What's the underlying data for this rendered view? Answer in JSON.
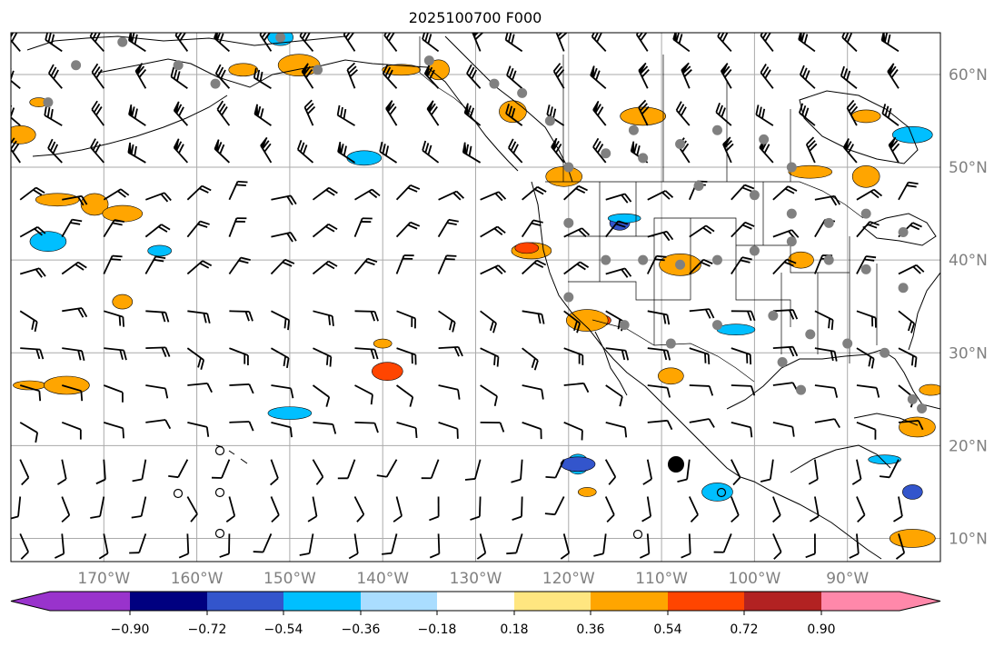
{
  "title": "2025100700 F000",
  "map": {
    "projection": "PlateCarree",
    "lon_range": [
      -180,
      -80
    ],
    "lat_range": [
      7.5,
      64.5
    ],
    "gridlines": true,
    "lon_ticks": [
      {
        "value": -170,
        "label": "170°W"
      },
      {
        "value": -160,
        "label": "160°W"
      },
      {
        "value": -150,
        "label": "150°W"
      },
      {
        "value": -140,
        "label": "140°W"
      },
      {
        "value": -130,
        "label": "130°W"
      },
      {
        "value": -120,
        "label": "120°W"
      },
      {
        "value": -110,
        "label": "110°W"
      },
      {
        "value": -100,
        "label": "100°W"
      },
      {
        "value": -90,
        "label": "90°W"
      }
    ],
    "lat_ticks": [
      {
        "value": 60,
        "label": "60°N"
      },
      {
        "value": 50,
        "label": "50°N"
      },
      {
        "value": 40,
        "label": "40°N"
      },
      {
        "value": 30,
        "label": "30°N"
      },
      {
        "value": 20,
        "label": "20°N"
      },
      {
        "value": 10,
        "label": "10°N"
      }
    ]
  },
  "colorbar": {
    "orientation": "horizontal",
    "extend": "both",
    "tick_labels": [
      "−0.90",
      "−0.72",
      "−0.54",
      "−0.36",
      "−0.18",
      "0.18",
      "0.36",
      "0.54",
      "0.72",
      "0.90"
    ],
    "colors": [
      "#9933cc",
      "#000080",
      "#3355cc",
      "#00bfff",
      "#aaddff",
      "#ffffff",
      "#ffe680",
      "#ffa500",
      "#ff4500",
      "#b22222",
      "#ff88aa"
    ]
  },
  "colors": {
    "land_outline": "#000000",
    "grid": "#aaaaaa",
    "barb": "#000000",
    "station_dot": "#808080"
  },
  "contour_patches": [
    {
      "lon": -177,
      "lat": 57,
      "color": "#ffa500"
    },
    {
      "lon": -179,
      "lat": 53.5,
      "color": "#ffa500"
    },
    {
      "lon": -175,
      "lat": 46.5,
      "color": "#ffa500"
    },
    {
      "lon": -171,
      "lat": 46,
      "color": "#ffa500"
    },
    {
      "lon": -168,
      "lat": 45,
      "color": "#ffa500"
    },
    {
      "lon": -164,
      "lat": 41,
      "color": "#00bfff"
    },
    {
      "lon": -176,
      "lat": 42,
      "color": "#00bfff"
    },
    {
      "lon": -168,
      "lat": 35.5,
      "color": "#ffa500"
    },
    {
      "lon": -178,
      "lat": 26.5,
      "color": "#ffa500"
    },
    {
      "lon": -174,
      "lat": 26.5,
      "color": "#ffa500"
    },
    {
      "lon": -155,
      "lat": 60.5,
      "color": "#ffa500"
    },
    {
      "lon": -149,
      "lat": 61,
      "color": "#ffa500"
    },
    {
      "lon": -151,
      "lat": 64,
      "color": "#00bfff"
    },
    {
      "lon": -138,
      "lat": 60.5,
      "color": "#ffa500"
    },
    {
      "lon": -134,
      "lat": 60.5,
      "color": "#ffa500"
    },
    {
      "lon": -142,
      "lat": 51,
      "color": "#00bfff"
    },
    {
      "lon": -140,
      "lat": 31,
      "color": "#ffa500"
    },
    {
      "lon": -139.5,
      "lat": 28,
      "color": "#ff4500"
    },
    {
      "lon": -150,
      "lat": 23.5,
      "color": "#00bfff"
    },
    {
      "lon": -126,
      "lat": 56,
      "color": "#ffa500"
    },
    {
      "lon": -124,
      "lat": 41,
      "color": "#ffa500"
    },
    {
      "lon": -124.5,
      "lat": 41.3,
      "color": "#ff4500"
    },
    {
      "lon": -120.5,
      "lat": 49,
      "color": "#ffa500"
    },
    {
      "lon": -114.5,
      "lat": 44,
      "color": "#3355cc"
    },
    {
      "lon": -114,
      "lat": 44.5,
      "color": "#00bfff"
    },
    {
      "lon": -112,
      "lat": 55.5,
      "color": "#ffa500"
    },
    {
      "lon": -117,
      "lat": 33.5,
      "color": "#ff4500"
    },
    {
      "lon": -118,
      "lat": 33.5,
      "color": "#ffa500"
    },
    {
      "lon": -109,
      "lat": 27.5,
      "color": "#ffa500"
    },
    {
      "lon": -102,
      "lat": 32.5,
      "color": "#00bfff"
    },
    {
      "lon": -119,
      "lat": 18,
      "color": "#00bfff"
    },
    {
      "lon": -119,
      "lat": 18,
      "color": "#3355cc"
    },
    {
      "lon": -118,
      "lat": 15,
      "color": "#ffa500"
    },
    {
      "lon": -104,
      "lat": 15,
      "color": "#00bfff"
    },
    {
      "lon": -94,
      "lat": 49.5,
      "color": "#ffa500"
    },
    {
      "lon": -88,
      "lat": 49,
      "color": "#ffa500"
    },
    {
      "lon": -83,
      "lat": 53.5,
      "color": "#00bfff"
    },
    {
      "lon": -81,
      "lat": 26,
      "color": "#ffa500"
    },
    {
      "lon": -82.5,
      "lat": 22,
      "color": "#ffa500"
    },
    {
      "lon": -83,
      "lat": 15,
      "color": "#3355cc"
    },
    {
      "lon": -86,
      "lat": 18.5,
      "color": "#00bfff"
    },
    {
      "lon": -83,
      "lat": 10,
      "color": "#ffa500"
    },
    {
      "lon": -88,
      "lat": 55.5,
      "color": "#ffa500"
    },
    {
      "lon": -108,
      "lat": 39.5,
      "color": "#ffa500"
    },
    {
      "lon": -95,
      "lat": 40,
      "color": "#ffa500"
    }
  ]
}
